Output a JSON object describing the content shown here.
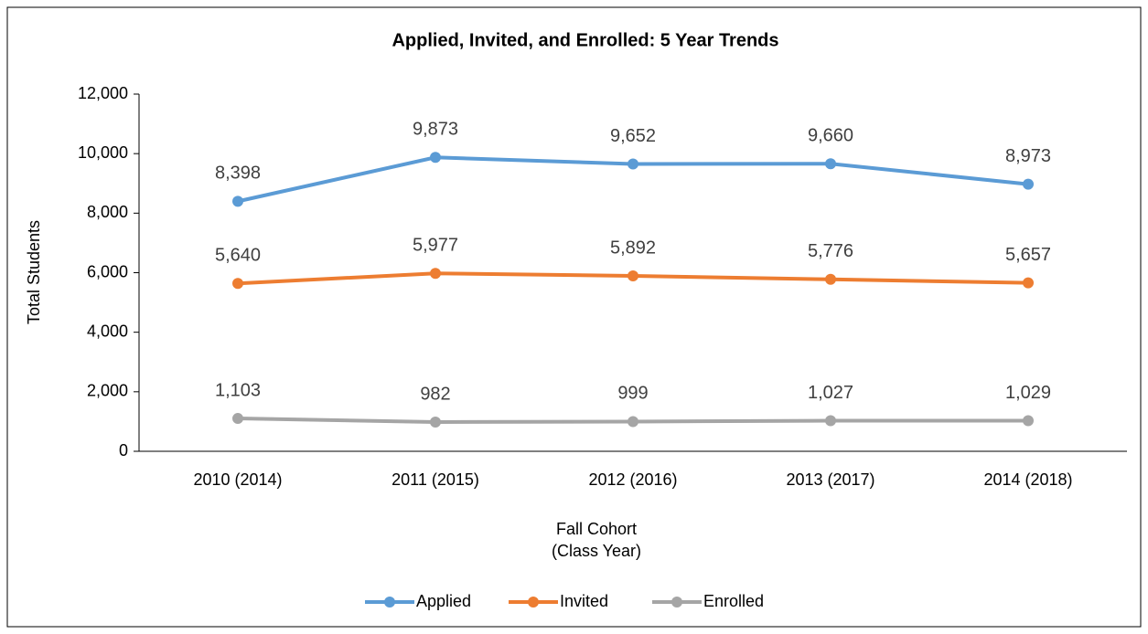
{
  "chart_data": {
    "type": "line",
    "title": "Applied, Invited, and Enrolled: 5 Year Trends",
    "y_label": "Total Students",
    "x_label": "Fall Cohort\n(Class Year)",
    "categories": [
      "2010 (2014)",
      "2011 (2015)",
      "2012 (2016)",
      "2013 (2017)",
      "2014 (2018)"
    ],
    "series": [
      {
        "name": "Applied",
        "color": "#5b9bd5",
        "values": [
          8398,
          9873,
          9652,
          9660,
          8973
        ],
        "value_labels": [
          "8,398",
          "9,873",
          "9,652",
          "9,660",
          "8,973"
        ]
      },
      {
        "name": "Invited",
        "color": "#ed7d31",
        "values": [
          5640,
          5977,
          5892,
          5776,
          5657
        ],
        "value_labels": [
          "5,640",
          "5,977",
          "5,892",
          "5,776",
          "5,657"
        ]
      },
      {
        "name": "Enrolled",
        "color": "#a5a5a5",
        "values": [
          1103,
          982,
          999,
          1027,
          1029
        ],
        "value_labels": [
          "1,103",
          "982",
          "999",
          "1,027",
          "1,029"
        ]
      }
    ],
    "ylim": [
      0,
      12000
    ],
    "yticks": [
      0,
      {
        "value": 2000,
        "label": "2,000"
      },
      {
        "value": 4000,
        "label": "4,000"
      },
      {
        "value": 6000,
        "label": "6,000"
      },
      {
        "value": 8000,
        "label": "8,000"
      },
      {
        "value": 10000,
        "label": "10,000"
      },
      {
        "value": 12000,
        "label": "12,000"
      }
    ],
    "legend": "bottom"
  }
}
